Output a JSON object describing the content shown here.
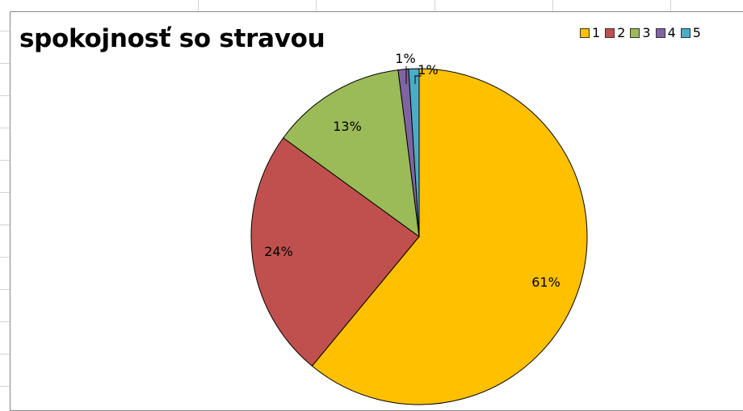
{
  "chart_data": {
    "type": "pie",
    "title": "spokojnosť so stravou",
    "categories": [
      "1",
      "2",
      "3",
      "4",
      "5"
    ],
    "values": [
      61,
      24,
      13,
      1,
      1
    ],
    "labels": [
      "61%",
      "24%",
      "13%",
      "1%",
      "1%"
    ],
    "colors": [
      "#FFC000",
      "#C0504D",
      "#9BBB59",
      "#8064A2",
      "#4BACC6"
    ],
    "legend": "top-right",
    "start_angle_deg": 0,
    "direction": "clockwise"
  }
}
